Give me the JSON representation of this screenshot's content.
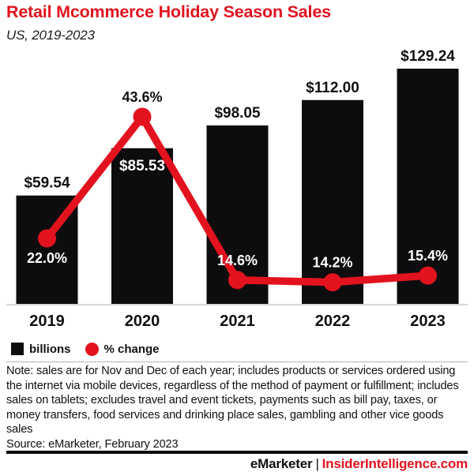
{
  "header": {
    "title": "Retail Mcommerce Holiday Season Sales",
    "subtitle": "US, 2019-2023"
  },
  "colors": {
    "accent_red": "#e2131e",
    "bar_black": "#0d0d0f",
    "text_dark": "#111111",
    "label_white": "#ffffff",
    "baseline_gray": "#c9c9c9"
  },
  "chart_data": {
    "type": "bar",
    "subtype": "bar-line-combo",
    "categories": [
      "2019",
      "2020",
      "2021",
      "2022",
      "2023"
    ],
    "series": [
      {
        "name": "billions",
        "type": "bar",
        "values": [
          59.54,
          85.53,
          98.05,
          112.0,
          129.24
        ],
        "labels": [
          "$59.54",
          "$85.53",
          "$98.05",
          "$112.00",
          "$129.24"
        ],
        "label_inside": [
          false,
          true,
          false,
          false,
          false
        ]
      },
      {
        "name": "% change",
        "type": "line",
        "values": [
          22.0,
          43.6,
          14.6,
          14.2,
          15.4
        ],
        "labels": [
          "22.0%",
          "43.6%",
          "14.6%",
          "14.2%",
          "15.4%"
        ],
        "label_below": [
          true,
          false,
          false,
          false,
          false
        ]
      }
    ],
    "title": "Retail Mcommerce Holiday Season Sales",
    "xlabel": "",
    "ylabel": "",
    "ylim_bars": [
      0,
      135
    ],
    "grid": false,
    "legend_position": "bottom-left"
  },
  "legend": {
    "bar_label": "billions",
    "line_label": "% change"
  },
  "note": "Note: sales are for Nov and Dec of each year; includes products or services ordered using the internet via mobile devices, regardless of the method of payment or fulfillment; includes sales on tablets; excludes travel and event tickets, payments such as bill pay, taxes, or money transfers, food services and drinking place sales, gambling and other vice goods sales",
  "source": "Source: eMarketer, February 2023",
  "footer": {
    "brand": "eMarketer",
    "separator": "|",
    "site": "InsiderIntelligence.com"
  }
}
